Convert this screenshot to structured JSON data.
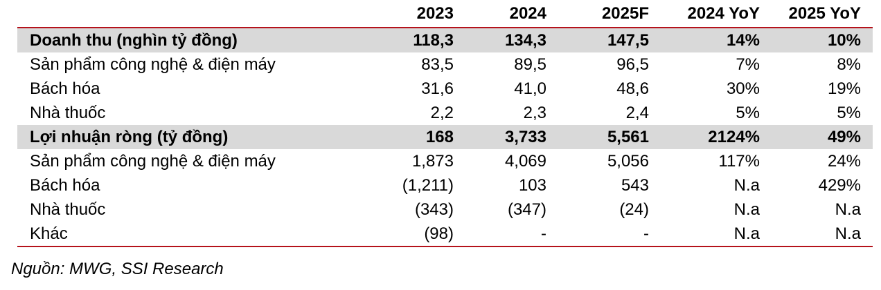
{
  "table": {
    "headers": [
      "",
      "2023",
      "2024",
      "2025F",
      "2024 YoY",
      "2025 YoY"
    ],
    "rows": [
      {
        "bold": true,
        "cells": [
          "Doanh thu (nghìn tỷ đồng)",
          "118,3",
          "134,3",
          "147,5",
          "14%",
          "10%"
        ]
      },
      {
        "bold": false,
        "cells": [
          "Sản phẩm công nghệ & điện máy",
          "83,5",
          "89,5",
          "96,5",
          "7%",
          "8%"
        ]
      },
      {
        "bold": false,
        "cells": [
          "Bách hóa",
          "31,6",
          "41,0",
          "48,6",
          "30%",
          "19%"
        ]
      },
      {
        "bold": false,
        "cells": [
          "Nhà thuốc",
          "2,2",
          "2,3",
          "2,4",
          "5%",
          "5%"
        ]
      },
      {
        "bold": true,
        "cells": [
          "Lợi nhuận ròng (tỷ đồng)",
          "168",
          "3,733",
          "5,561",
          "2124%",
          "49%"
        ]
      },
      {
        "bold": false,
        "cells": [
          "Sản phẩm công nghệ & điện máy",
          "1,873",
          "4,069",
          "5,056",
          "117%",
          "24%"
        ]
      },
      {
        "bold": false,
        "cells": [
          "Bách hóa",
          "(1,211)",
          "103",
          "543",
          "N.a",
          "429%"
        ]
      },
      {
        "bold": false,
        "cells": [
          "Nhà thuốc",
          "(343)",
          "(347)",
          "(24)",
          "N.a",
          "N.a"
        ]
      },
      {
        "bold": false,
        "cells": [
          "Khác",
          "(98)",
          "-",
          "-",
          "N.a",
          "N.a"
        ]
      }
    ]
  },
  "source": "Nguồn: MWG, SSI Research",
  "colors": {
    "rule": "#b5121b",
    "highlight_row": "#d9d9d9"
  }
}
